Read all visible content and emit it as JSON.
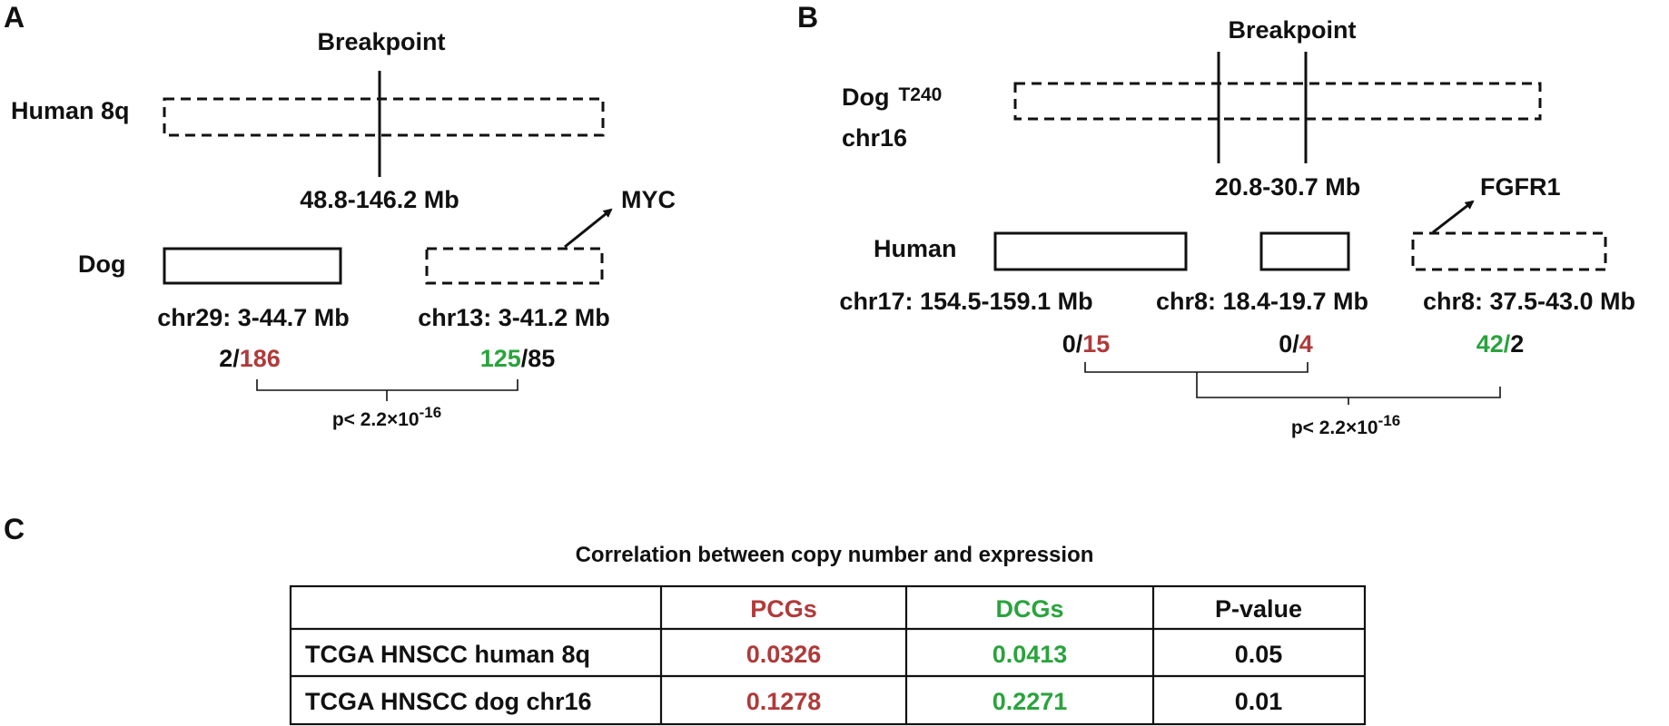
{
  "panel_a": {
    "letter": "A",
    "breakpoint": "Breakpoint",
    "human_label": "Human 8q",
    "range": "48.8-146.2 Mb",
    "dog_label": "Dog",
    "gene": "MYC",
    "box1_label": "chr29: 3-44.7 Mb",
    "box1_count_a": "2/",
    "box1_count_b": "186",
    "box2_label": "chr13: 3-41.2 Mb",
    "box2_count_a": "125",
    "box2_count_b": "/85",
    "pvalue_prefix": "p< 2.2×10",
    "pvalue_exp": "-16"
  },
  "panel_b": {
    "letter": "B",
    "breakpoint": "Breakpoint",
    "dog_label_1": "Dog",
    "dog_label_sample": "T240",
    "dog_label_2": "chr16",
    "range": "20.8-30.7 Mb",
    "human_label": "Human",
    "gene": "FGFR1",
    "box1_label": "chr17: 154.5-159.1 Mb",
    "box1_count_a": "0/",
    "box1_count_b": "15",
    "box2_label": "chr8: 18.4-19.7 Mb",
    "box2_count_a": "0/",
    "box2_count_b": "4",
    "box3_label": "chr8: 37.5-43.0 Mb",
    "box3_count_a": "42/",
    "box3_count_b": "2",
    "pvalue_prefix": "p< 2.2×10",
    "pvalue_exp": "-16"
  },
  "panel_c": {
    "letter": "C",
    "title": "Correlation between copy number and expression",
    "headers": [
      "",
      "PCGs",
      "DCGs",
      "P-value"
    ],
    "rows": [
      [
        "TCGA HNSCC human 8q",
        "0.0326",
        "0.0413",
        "0.05"
      ],
      [
        "TCGA HNSCC dog chr16",
        "0.1278",
        "0.2271",
        "0.01"
      ]
    ]
  },
  "colors": {
    "red": "#b03a3a",
    "green": "#2aa33d",
    "black": "#111111"
  }
}
